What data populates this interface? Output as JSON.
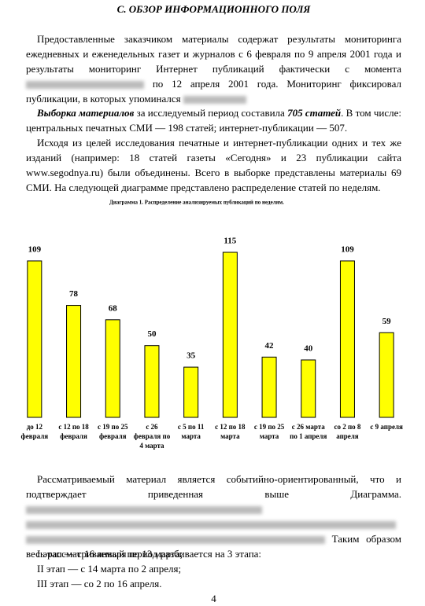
{
  "heading": "C. ОБЗОР ИНФОРМАЦИОННОГО ПОЛЯ",
  "paragraph_1": {
    "text_a": "Предоставленные заказчиком материалы содержат результаты мониторинга ежедневных и еженедельных газет и журналов с 6 февраля по 9 апреля 2001 года и результаты мониторинг Интернет публикаций фактически с момента",
    "text_b": "по 12 апреля 2001 года. Мониторинг фиксировал публикации, в которых упоминался"
  },
  "paragraph_2": {
    "lead": "Выборка материалов",
    "text_a": "за исследуемый период составила",
    "emphasis": "705 статей",
    "text_b": ". В том числе: центральных печатных СМИ — 198 статей; интернет-публикации — 507."
  },
  "paragraph_3": "Исходя из целей исследования печатные и интернет-публикации одних и тех же изданий (например: 18 статей газеты «Сегодня» и 23 публикации сайта www.segodnya.ru) были объединены. Всего в выборке представлены материалы 69 СМИ. На следующей диаграмме представлено распределение статей по неделям.",
  "chart_data": {
    "type": "bar",
    "title": "Диаграмма 1. Распределение анализируемых публикаций по неделям.",
    "categories": [
      "до 12 февраля",
      "с 12 по 18 февраля",
      "с 19 по 25 февраля",
      "с 26 февраля по 4 марта",
      "с 5 по 11 марта",
      "с 12 по 18 марта",
      "с 19 по 25 марта",
      "с 26 марта по 1 апреля",
      "со 2 по 8 апреля",
      "с 9 апреля"
    ],
    "values": [
      109,
      78,
      68,
      50,
      35,
      115,
      42,
      40,
      109,
      59
    ],
    "color": "#ffff00"
  },
  "paragraph_4": {
    "text_a": "Рассматриваемый материал является событийно-ориентированный, что и подтверждает приведенная выше Диаграмма.",
    "text_b": "Таким образом весь рассматриваемый период разбивается на 3 этапа:"
  },
  "stages": [
    "I этап — с 16 января по 13 марта;",
    "II этап — с 14 марта по 2 апреля;",
    "III этап — со 2 по 16 апреля."
  ],
  "page_number": "4"
}
